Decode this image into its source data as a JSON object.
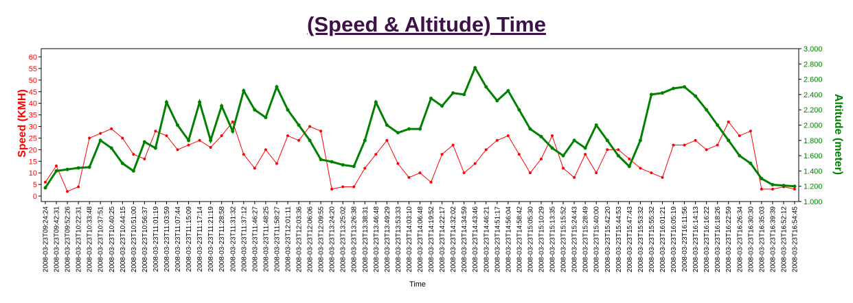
{
  "chart_data": {
    "type": "line",
    "title": "(Speed & Altitude) Time",
    "xlabel": "Time",
    "ylabel_left": "Speed (KMH)",
    "ylabel_right": "Altitude (meter)",
    "ylim_left": [
      0,
      60
    ],
    "ylim_right": [
      1000,
      3000
    ],
    "yticks_left": [
      "0",
      "5",
      "10",
      "15",
      "20",
      "25",
      "30",
      "35",
      "40",
      "45",
      "50",
      "55",
      "60"
    ],
    "yticks_right": [
      "1.000",
      "1.200",
      "1.400",
      "1.600",
      "1.800",
      "2.000",
      "2.200",
      "2.400",
      "2.600",
      "2.800",
      "3.000"
    ],
    "grid": false,
    "x": [
      "2008-03-23T09:24:24",
      "2008-03-23T09:42:31",
      "2008-03-23T09:52:26",
      "2008-03-23T10:22:31",
      "2008-03-23T10:33:48",
      "2008-03-23T10:37:51",
      "2008-03-23T10:40:25",
      "2008-03-23T10:44:15",
      "2008-03-23T10:51:00",
      "2008-03-23T10:56:37",
      "2008-03-23T11:01:19",
      "2008-03-23T11:03:59",
      "2008-03-23T11:07:44",
      "2008-03-23T11:15:09",
      "2008-03-23T11:17:14",
      "2008-03-23T11:21:19",
      "2008-03-23T11:28:58",
      "2008-03-23T11:31:32",
      "2008-03-23T11:37:12",
      "2008-03-23T11:46:27",
      "2008-03-23T11:48:25",
      "2008-03-23T11:58:27",
      "2008-03-23T12:01:11",
      "2008-03-23T12:03:36",
      "2008-03-23T12:06:06",
      "2008-03-23T12:09:55",
      "2008-03-23T13:24:20",
      "2008-03-23T13:25:02",
      "2008-03-23T13:26:38",
      "2008-03-23T13:38:31",
      "2008-03-23T13:46:48",
      "2008-03-23T13:49:29",
      "2008-03-23T13:53:33",
      "2008-03-23T14:03:10",
      "2008-03-23T14:06:48",
      "2008-03-23T14:19:52",
      "2008-03-23T14:22:17",
      "2008-03-23T14:32:02",
      "2008-03-23T14:34:59",
      "2008-03-23T14:43:46",
      "2008-03-23T14:46:21",
      "2008-03-23T14:51:17",
      "2008-03-23T14:56:04",
      "2008-03-23T14:58:42",
      "2008-03-23T15:05:30",
      "2008-03-23T15:10:29",
      "2008-03-23T15:13:35",
      "2008-03-23T15:15:52",
      "2008-03-23T15:24:43",
      "2008-03-23T15:28:49",
      "2008-03-23T15:40:00",
      "2008-03-23T15:42:20",
      "2008-03-23T15:44:53",
      "2008-03-23T15:47:43",
      "2008-03-23T15:53:32",
      "2008-03-23T15:55:32",
      "2008-03-23T16:01:21",
      "2008-03-23T16:05:19",
      "2008-03-23T16:11:56",
      "2008-03-23T16:14:13",
      "2008-03-23T16:16:22",
      "2008-03-23T16:18:26",
      "2008-03-23T16:22:59",
      "2008-03-23T16:26:34",
      "2008-03-23T16:30:30",
      "2008-03-23T16:35:03",
      "2008-03-23T16:39:39",
      "2008-03-23T16:52:12",
      "2008-03-23T16:54:45"
    ],
    "series": [
      {
        "name": "Speed (KMH)",
        "axis": "left",
        "color": "#ff0000",
        "values": [
          6,
          13,
          2,
          4,
          25,
          27,
          29,
          25,
          18,
          16,
          28,
          26,
          20,
          22,
          24,
          21,
          26,
          32,
          18,
          12,
          20,
          14,
          26,
          24,
          30,
          28,
          3,
          4,
          4,
          12,
          18,
          24,
          14,
          8,
          10,
          6,
          18,
          22,
          10,
          14,
          20,
          24,
          26,
          18,
          10,
          16,
          26,
          12,
          8,
          18,
          10,
          20,
          20,
          16,
          12,
          10,
          8,
          22,
          22,
          24,
          20,
          22,
          32,
          26,
          28,
          3,
          3,
          4,
          3
        ]
      },
      {
        "name": "Altitude (meter)",
        "axis": "right",
        "color": "#008000",
        "values": [
          1180,
          1400,
          1420,
          1440,
          1450,
          1800,
          1700,
          1500,
          1400,
          1780,
          1700,
          2300,
          2000,
          1800,
          2300,
          1800,
          2250,
          1920,
          2450,
          2200,
          2100,
          2500,
          2200,
          2000,
          1800,
          1550,
          1520,
          1480,
          1460,
          1800,
          2300,
          2000,
          1900,
          1950,
          1950,
          2350,
          2250,
          2420,
          2400,
          2750,
          2500,
          2320,
          2450,
          2200,
          1950,
          1850,
          1700,
          1600,
          1800,
          1700,
          2000,
          1800,
          1600,
          1460,
          1800,
          2400,
          2420,
          2480,
          2500,
          2380,
          2200,
          2000,
          1800,
          1600,
          1500,
          1300,
          1220,
          1210,
          1200
        ]
      }
    ]
  }
}
